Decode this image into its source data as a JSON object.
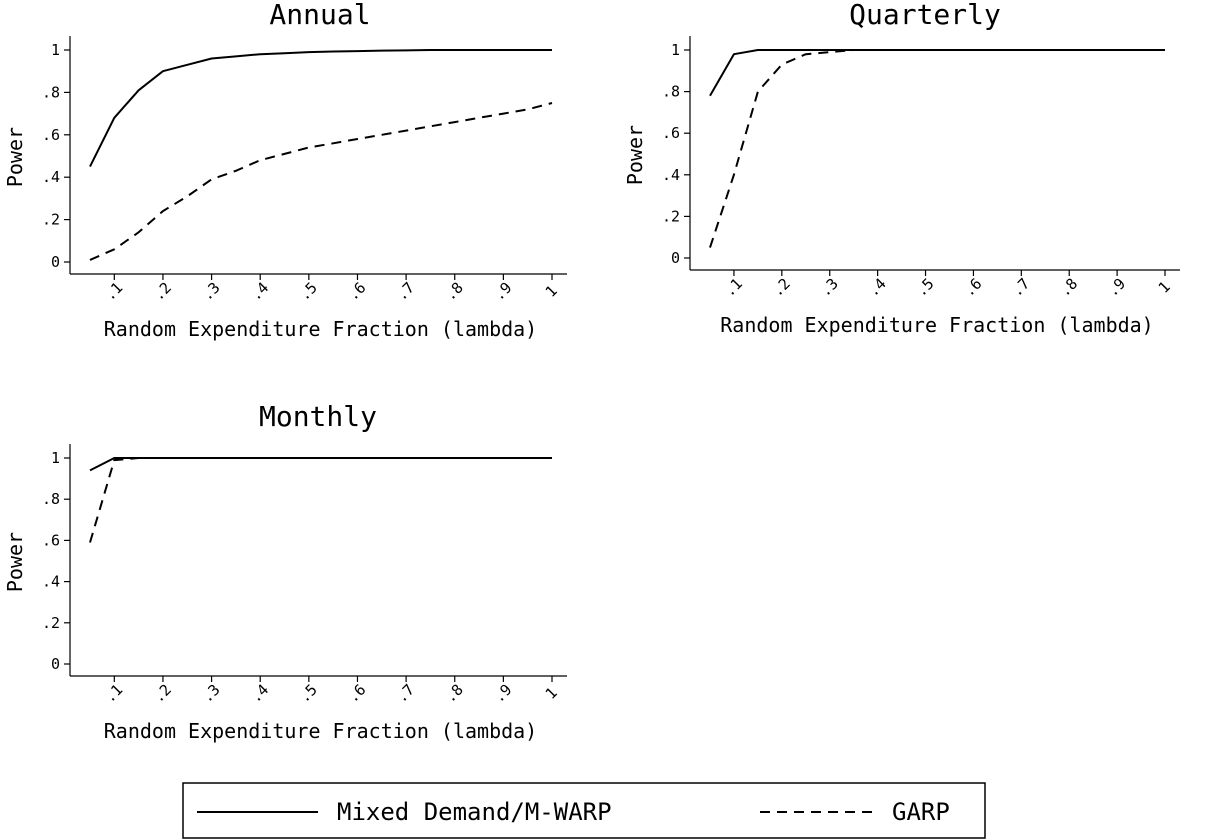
{
  "legend": {
    "entries": [
      {
        "label": "Mixed Demand/M-WARP",
        "style": "solid"
      },
      {
        "label": "GARP",
        "style": "dashed"
      }
    ]
  },
  "chart_data": [
    {
      "type": "line",
      "title": "Annual",
      "xlabel": "Random Expenditure Fraction (lambda)",
      "ylabel": "Power",
      "xlim": [
        0,
        1
      ],
      "ylim": [
        0,
        1
      ],
      "xticks": [
        ".1",
        ".2",
        ".3",
        ".4",
        ".5",
        ".6",
        ".7",
        ".8",
        ".9",
        "1"
      ],
      "yticks": [
        "0",
        ".2",
        ".4",
        ".6",
        ".8",
        "1"
      ],
      "x": [
        0.05,
        0.1,
        0.15,
        0.2,
        0.25,
        0.3,
        0.35,
        0.4,
        0.45,
        0.5,
        0.55,
        0.6,
        0.65,
        0.7,
        0.75,
        0.8,
        0.85,
        0.9,
        0.95,
        1.0
      ],
      "series": [
        {
          "name": "Mixed Demand/M-WARP",
          "style": "solid",
          "values": [
            0.45,
            0.68,
            0.81,
            0.9,
            0.93,
            0.96,
            0.97,
            0.98,
            0.985,
            0.99,
            0.993,
            0.995,
            0.997,
            0.998,
            1.0,
            1.0,
            1.0,
            1.0,
            1.0,
            1.0
          ]
        },
        {
          "name": "GARP",
          "style": "dashed",
          "values": [
            0.01,
            0.06,
            0.14,
            0.24,
            0.31,
            0.39,
            0.43,
            0.48,
            0.51,
            0.54,
            0.56,
            0.58,
            0.6,
            0.62,
            0.64,
            0.66,
            0.68,
            0.7,
            0.72,
            0.75
          ]
        }
      ],
      "legend": "bottom-center"
    },
    {
      "type": "line",
      "title": "Quarterly",
      "xlabel": "Random Expenditure Fraction (lambda)",
      "ylabel": "Power",
      "xlim": [
        0,
        1
      ],
      "ylim": [
        0,
        1
      ],
      "xticks": [
        ".1",
        ".2",
        ".3",
        ".4",
        ".5",
        ".6",
        ".7",
        ".8",
        ".9",
        "1"
      ],
      "yticks": [
        "0",
        ".2",
        ".4",
        ".6",
        ".8",
        "1"
      ],
      "x": [
        0.05,
        0.1,
        0.15,
        0.2,
        0.25,
        0.3,
        0.35,
        0.4,
        0.45,
        0.5,
        0.55,
        0.6,
        0.65,
        0.7,
        0.75,
        0.8,
        0.85,
        0.9,
        0.95,
        1.0
      ],
      "series": [
        {
          "name": "Mixed Demand/M-WARP",
          "style": "solid",
          "values": [
            0.78,
            0.98,
            1.0,
            1.0,
            1.0,
            1.0,
            1.0,
            1.0,
            1.0,
            1.0,
            1.0,
            1.0,
            1.0,
            1.0,
            1.0,
            1.0,
            1.0,
            1.0,
            1.0,
            1.0
          ]
        },
        {
          "name": "GARP",
          "style": "dashed",
          "values": [
            0.05,
            0.4,
            0.8,
            0.93,
            0.98,
            0.99,
            1.0,
            1.0,
            1.0,
            1.0,
            1.0,
            1.0,
            1.0,
            1.0,
            1.0,
            1.0,
            1.0,
            1.0,
            1.0,
            1.0
          ]
        }
      ],
      "legend": "bottom-center"
    },
    {
      "type": "line",
      "title": "Monthly",
      "xlabel": "Random Expenditure Fraction (lambda)",
      "ylabel": "Power",
      "xlim": [
        0,
        1
      ],
      "ylim": [
        0,
        1
      ],
      "xticks": [
        ".1",
        ".2",
        ".3",
        ".4",
        ".5",
        ".6",
        ".7",
        ".8",
        ".9",
        "1"
      ],
      "yticks": [
        "0",
        ".2",
        ".4",
        ".6",
        ".8",
        "1"
      ],
      "x": [
        0.05,
        0.1,
        0.15,
        0.2,
        0.25,
        0.3,
        0.35,
        0.4,
        0.45,
        0.5,
        0.55,
        0.6,
        0.65,
        0.7,
        0.75,
        0.8,
        0.85,
        0.9,
        0.95,
        1.0
      ],
      "series": [
        {
          "name": "Mixed Demand/M-WARP",
          "style": "solid",
          "values": [
            0.94,
            1.0,
            1.0,
            1.0,
            1.0,
            1.0,
            1.0,
            1.0,
            1.0,
            1.0,
            1.0,
            1.0,
            1.0,
            1.0,
            1.0,
            1.0,
            1.0,
            1.0,
            1.0,
            1.0
          ]
        },
        {
          "name": "GARP",
          "style": "dashed",
          "values": [
            0.59,
            0.99,
            1.0,
            1.0,
            1.0,
            1.0,
            1.0,
            1.0,
            1.0,
            1.0,
            1.0,
            1.0,
            1.0,
            1.0,
            1.0,
            1.0,
            1.0,
            1.0,
            1.0,
            1.0
          ]
        }
      ],
      "legend": "bottom-center"
    }
  ]
}
